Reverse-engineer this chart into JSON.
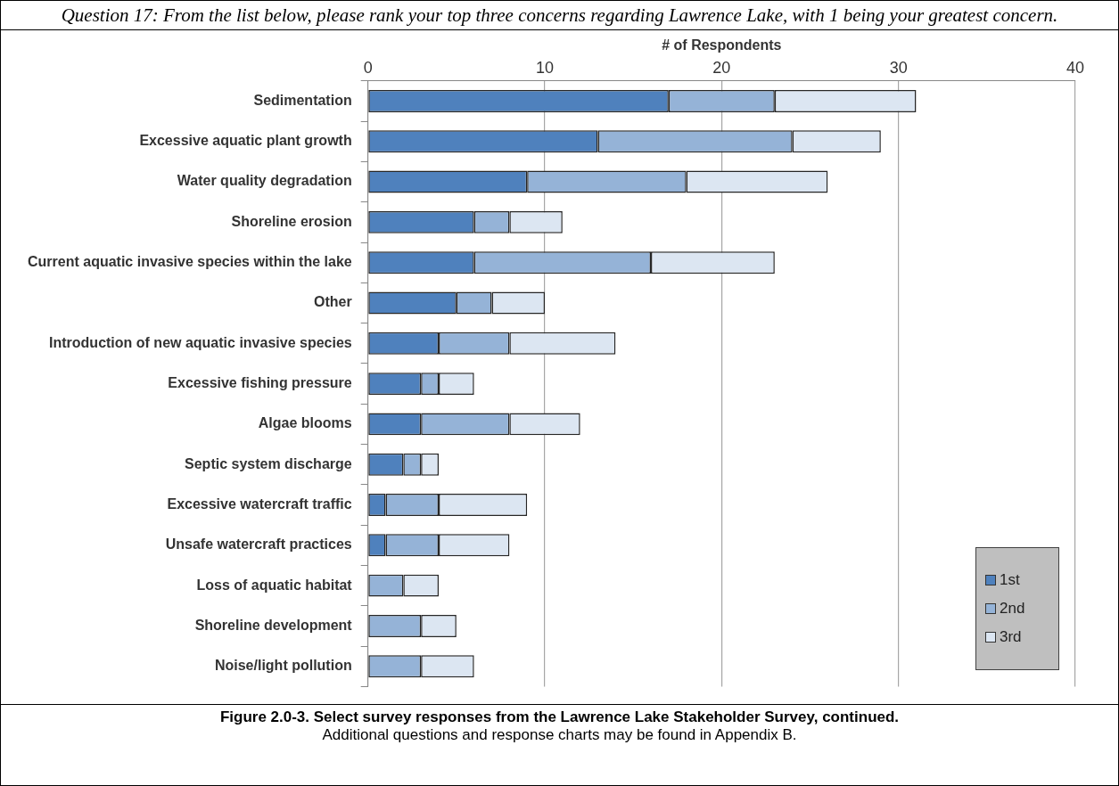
{
  "chart_data": {
    "type": "bar",
    "orientation": "horizontal",
    "stacked": true,
    "title": "Question 17:  From the list below, please rank your top three concerns regarding Lawrence Lake, with 1 being your greatest concern.",
    "xlabel": "# of Respondents",
    "categories": [
      "Sedimentation",
      "Excessive aquatic plant growth",
      "Water quality degradation",
      "Shoreline erosion",
      "Current aquatic invasive species within the lake",
      "Other",
      "Introduction of new aquatic invasive species",
      "Excessive fishing pressure",
      "Algae blooms",
      "Septic system discharge",
      "Excessive watercraft traffic",
      "Unsafe watercraft practices",
      "Loss of aquatic habitat",
      "Shoreline development",
      "Noise/light pollution"
    ],
    "series": [
      {
        "name": "1st",
        "color": "#4f81bd",
        "values": [
          17,
          13,
          9,
          6,
          6,
          5,
          4,
          3,
          3,
          2,
          1,
          1,
          0,
          0,
          0
        ]
      },
      {
        "name": "2nd",
        "color": "#95b3d7",
        "values": [
          6,
          11,
          9,
          2,
          10,
          2,
          4,
          1,
          5,
          1,
          3,
          3,
          2,
          3,
          3
        ]
      },
      {
        "name": "3rd",
        "color": "#dce6f2",
        "values": [
          8,
          5,
          8,
          3,
          7,
          3,
          6,
          2,
          4,
          1,
          5,
          4,
          2,
          2,
          3
        ]
      }
    ],
    "xlim": [
      0,
      40
    ],
    "xticks": [
      0,
      10,
      20,
      30,
      40
    ],
    "grid": "x",
    "legend": "bottom right",
    "annotations": [
      "Figure 2.0-3.  Select survey responses from the Lawrence Lake Stakeholder Survey, continued.",
      "Additional questions and response charts may be found in Appendix B."
    ]
  }
}
